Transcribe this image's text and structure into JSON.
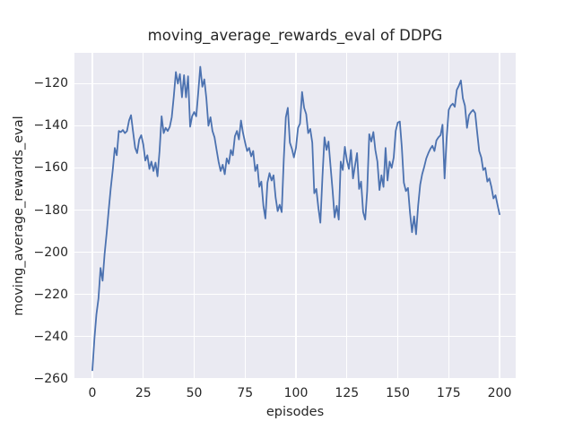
{
  "chart_data": {
    "type": "line",
    "title": "moving_average_rewards_eval of DDPG",
    "xlabel": "episodes",
    "ylabel": "moving_average_rewards_eval",
    "x_ticks": [
      0,
      25,
      50,
      75,
      100,
      125,
      150,
      175,
      200
    ],
    "y_ticks": [
      -120,
      -140,
      -160,
      -180,
      -200,
      -220,
      -240,
      -260
    ],
    "xlim": [
      -8.8,
      207.9
    ],
    "ylim": [
      -260.2,
      -105.4
    ],
    "grid": true,
    "legend": "none",
    "line_color": "#4c72b0",
    "panel_color": "#eaeaf2",
    "x_start": 0,
    "x_step": 1,
    "values": [
      -256,
      -241,
      -229.5,
      -222,
      -207.5,
      -213.5,
      -201,
      -191,
      -180,
      -170,
      -161,
      -150.5,
      -154,
      -142.5,
      -143,
      -142,
      -143.5,
      -142.5,
      -137.5,
      -135,
      -143,
      -150.5,
      -153,
      -146.5,
      -144.5,
      -149,
      -156.5,
      -154,
      -160.5,
      -157,
      -161.5,
      -157.5,
      -164,
      -152,
      -135.5,
      -143.5,
      -141,
      -142.5,
      -140.5,
      -136,
      -126,
      -114.5,
      -120,
      -115.5,
      -126.5,
      -116,
      -126.5,
      -116.5,
      -140.5,
      -135.5,
      -133.5,
      -135.5,
      -124.5,
      -112,
      -121.5,
      -118,
      -127,
      -140,
      -136,
      -142.5,
      -145.5,
      -151.5,
      -157,
      -161.5,
      -158.5,
      -163,
      -155.5,
      -158,
      -151.5,
      -154,
      -145,
      -142.5,
      -146.5,
      -137.5,
      -143.5,
      -148,
      -152,
      -150.5,
      -154.5,
      -152,
      -161.5,
      -158.5,
      -169,
      -166.5,
      -178,
      -184,
      -167,
      -162.5,
      -166,
      -163.5,
      -174,
      -180.5,
      -177.5,
      -181,
      -156,
      -136,
      -131.5,
      -148,
      -151,
      -155,
      -150.5,
      -141,
      -139,
      -124,
      -131.5,
      -134.5,
      -143.5,
      -141.5,
      -148,
      -172,
      -170,
      -179,
      -186,
      -164.5,
      -145.5,
      -151.5,
      -147.5,
      -159.5,
      -171,
      -183.5,
      -178,
      -184.5,
      -157,
      -161,
      -150,
      -156.5,
      -160.5,
      -151.5,
      -165,
      -159,
      -153,
      -170,
      -166.5,
      -181,
      -184.5,
      -171,
      -144,
      -147.5,
      -143,
      -151.5,
      -157,
      -170.5,
      -163.5,
      -169,
      -150.5,
      -166,
      -157,
      -160,
      -155,
      -142.5,
      -138.5,
      -138,
      -150,
      -167,
      -171,
      -169.5,
      -181,
      -190.5,
      -183,
      -191.5,
      -178,
      -168,
      -163,
      -159.5,
      -155.5,
      -153,
      -151,
      -149.5,
      -152,
      -147,
      -145.5,
      -144.5,
      -139.5,
      -165,
      -146,
      -132.5,
      -130.5,
      -129.5,
      -131,
      -123,
      -121,
      -118.5,
      -127,
      -130.5,
      -141,
      -135,
      -133.5,
      -132.5,
      -134,
      -143,
      -152,
      -155,
      -161,
      -160,
      -166.5,
      -165,
      -169,
      -174.5,
      -173,
      -177.5,
      -182
    ]
  }
}
